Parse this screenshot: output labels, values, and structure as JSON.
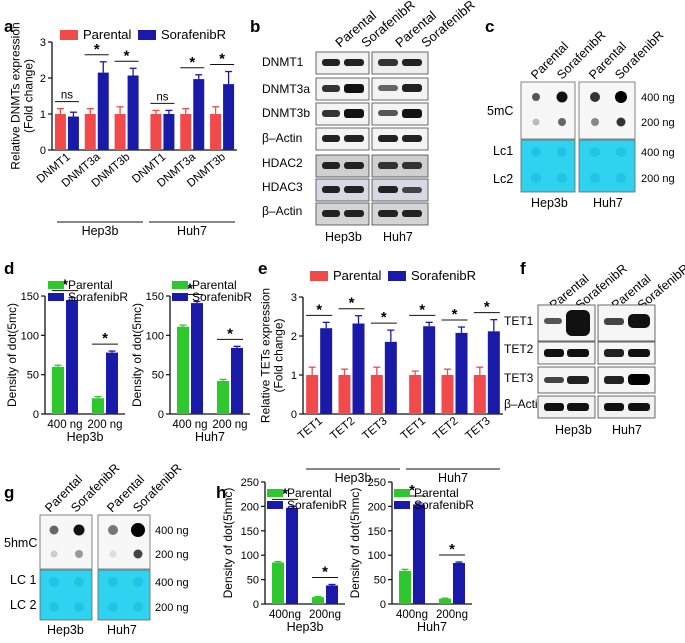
{
  "colors": {
    "parental_red": "#f04a4a",
    "sorafenib_blue": "#1a1aa8",
    "parental_green": "#2ec82e",
    "lc_cyan": "#2fd3f0"
  },
  "panels": {
    "a": {
      "letter": "a"
    },
    "b": {
      "letter": "b",
      "col_parental": "Parental",
      "col_sorafenib": "SorafenibR",
      "rows": [
        "DNMT1",
        "DNMT3a",
        "DNMT3b",
        "β–Actin",
        "HDAC2",
        "HDAC3",
        "β–Actin"
      ],
      "group1": "Hep3b",
      "group2": "Huh7"
    },
    "c": {
      "letter": "c",
      "col_parental": "Parental",
      "col_sorafenib": "SorafenibR",
      "label_5mc": "5mC",
      "label_lc1": "Lc1",
      "label_lc2": "Lc2",
      "dose_400": "400 ng",
      "dose_200": "200 ng",
      "group1": "Hep3b",
      "group2": "Huh7"
    },
    "d": {
      "letter": "d"
    },
    "e": {
      "letter": "e"
    },
    "f": {
      "letter": "f",
      "col_parental": "Parental",
      "col_sorafenib": "SorafenibR",
      "rows": [
        "TET1",
        "TET2",
        "TET3",
        "β–Actin"
      ],
      "group1": "Hep3b",
      "group2": "Huh7"
    },
    "g": {
      "letter": "g",
      "col_parental": "Parental",
      "col_sorafenib": "SorafenibR",
      "label_5hmc": "5hmC",
      "label_lc1": "LC 1",
      "label_lc2": "LC 2",
      "dose_400": "400 ng",
      "dose_200": "200 ng",
      "group1": "Hep3b",
      "group2": "Huh7"
    },
    "h": {
      "letter": "h"
    }
  },
  "chart_data": [
    {
      "id": "a",
      "type": "bar",
      "categories": [
        "DNMT1",
        "DNMT3a",
        "DNMT3b",
        "DNMT1",
        "DNMT3a",
        "DNMT3b"
      ],
      "groups": [
        "Hep3b",
        "Huh7"
      ],
      "series": [
        {
          "name": "Parental",
          "values": [
            1.0,
            1.0,
            1.0,
            1.0,
            1.0,
            1.0
          ],
          "errors": [
            0.15,
            0.15,
            0.2,
            0.1,
            0.15,
            0.2
          ]
        },
        {
          "name": "SorafenibR",
          "values": [
            0.93,
            2.15,
            2.07,
            1.0,
            1.97,
            1.83
          ],
          "errors": [
            0.12,
            0.3,
            0.2,
            0.1,
            0.12,
            0.35
          ]
        }
      ],
      "significance": [
        "ns",
        "*",
        "*",
        "ns",
        "*",
        "*"
      ],
      "ylabel": "Relative DNMTs expression\n(Fold change)",
      "ylim": [
        0,
        3
      ],
      "yticks": [
        0,
        1,
        2,
        3
      ]
    },
    {
      "id": "d1",
      "type": "bar",
      "categories": [
        "400 ng",
        "200 ng"
      ],
      "group": "Hep3b",
      "series": [
        {
          "name": "Parental",
          "values": [
            60,
            20
          ],
          "errors": [
            2,
            2
          ]
        },
        {
          "name": "SorafenibR",
          "values": [
            145,
            78
          ],
          "errors": [
            3,
            2
          ]
        }
      ],
      "significance": [
        "*",
        "*"
      ],
      "ylabel": "Density of dot(5mc)",
      "ylim": [
        0,
        150
      ],
      "yticks": [
        0,
        50,
        100,
        150
      ]
    },
    {
      "id": "d2",
      "type": "bar",
      "categories": [
        "400 ng",
        "200 ng"
      ],
      "group": "Huh7",
      "series": [
        {
          "name": "Parental",
          "values": [
            111,
            42
          ],
          "errors": [
            2,
            2
          ]
        },
        {
          "name": "SorafenibR",
          "values": [
            141,
            84
          ],
          "errors": [
            2,
            2
          ]
        }
      ],
      "significance": [
        "*",
        "*"
      ],
      "ylabel": "Density of dot(5mc)",
      "ylim": [
        0,
        150
      ],
      "yticks": [
        0,
        50,
        100,
        150
      ]
    },
    {
      "id": "e",
      "type": "bar",
      "categories": [
        "TET1",
        "TET2",
        "TET3",
        "TET1",
        "TET2",
        "TET3"
      ],
      "groups": [
        "Hep3b",
        "Huh7"
      ],
      "series": [
        {
          "name": "Parental",
          "values": [
            1.0,
            1.0,
            1.0,
            1.0,
            1.0,
            1.0
          ],
          "errors": [
            0.2,
            0.15,
            0.2,
            0.1,
            0.15,
            0.2
          ]
        },
        {
          "name": "SorafenibR",
          "values": [
            2.2,
            2.32,
            1.85,
            2.25,
            2.08,
            2.12
          ],
          "errors": [
            0.15,
            0.2,
            0.3,
            0.1,
            0.15,
            0.3
          ]
        }
      ],
      "significance": [
        "*",
        "*",
        "*",
        "*",
        "*",
        "*"
      ],
      "ylabel": "Relative TETs expression\n(Fold change)",
      "ylim": [
        0,
        3
      ],
      "yticks": [
        0,
        1,
        2,
        3
      ]
    },
    {
      "id": "h1",
      "type": "bar",
      "categories": [
        "400ng",
        "200ng"
      ],
      "group": "Hep3b",
      "series": [
        {
          "name": "Parental",
          "values": [
            85,
            14
          ],
          "errors": [
            2,
            1
          ]
        },
        {
          "name": "SorafenibR",
          "values": [
            197,
            38
          ],
          "errors": [
            3,
            2
          ]
        }
      ],
      "significance": [
        "*",
        "*"
      ],
      "ylabel": "Density of dot(5hmc)",
      "ylim": [
        0,
        250
      ],
      "yticks": [
        0,
        50,
        100,
        150,
        200,
        250
      ]
    },
    {
      "id": "h2",
      "type": "bar",
      "categories": [
        "400ng",
        "200ng"
      ],
      "group": "Huh7",
      "series": [
        {
          "name": "Parental",
          "values": [
            68,
            11
          ],
          "errors": [
            3,
            1
          ]
        },
        {
          "name": "SorafenibR",
          "values": [
            204,
            84
          ],
          "errors": [
            3,
            2
          ]
        }
      ],
      "significance": [
        "*",
        "*"
      ],
      "ylabel": "Density of dot(5hmc)",
      "ylim": [
        0,
        250
      ],
      "yticks": [
        0,
        50,
        100,
        150,
        200,
        250
      ]
    }
  ]
}
